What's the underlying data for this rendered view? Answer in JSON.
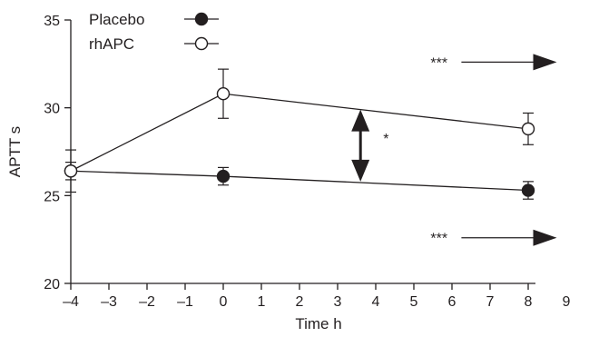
{
  "chart_data": {
    "type": "line",
    "title": "",
    "xlabel": "Time h",
    "ylabel": "APTT s",
    "xlim": [
      -4,
      9
    ],
    "ylim": [
      20,
      35
    ],
    "x_ticks": [
      -4,
      -3,
      -2,
      -1,
      0,
      1,
      2,
      3,
      4,
      5,
      6,
      7,
      8,
      9
    ],
    "x_tick_labels": [
      "–4",
      "–3",
      "–2",
      "–1",
      "0",
      "1",
      "2",
      "3",
      "4",
      "5",
      "6",
      "7",
      "8",
      "9"
    ],
    "y_ticks": [
      20,
      25,
      30,
      35
    ],
    "y_tick_labels": [
      "20",
      "25",
      "30",
      "35"
    ],
    "grid": false,
    "legend_position": "top-left",
    "series": [
      {
        "name": "Placebo",
        "marker": "filled-circle",
        "color": "#231f20",
        "x": [
          -4,
          0,
          8
        ],
        "y": [
          26.4,
          26.1,
          25.3
        ],
        "error": [
          0.5,
          0.5,
          0.5
        ]
      },
      {
        "name": "rhAPC",
        "marker": "open-circle",
        "color": "#231f20",
        "x": [
          -4,
          0,
          8
        ],
        "y": [
          26.4,
          30.8,
          28.8
        ],
        "error": [
          1.2,
          1.4,
          0.9
        ]
      }
    ],
    "annotations": [
      {
        "type": "significance-arrow",
        "text": "***",
        "series": "rhAPC"
      },
      {
        "type": "significance-arrow",
        "text": "***",
        "series": "Placebo"
      },
      {
        "type": "double-arrow",
        "text": "*",
        "x": 3.6,
        "y_from": 25.8,
        "y_to": 29.9
      }
    ]
  }
}
